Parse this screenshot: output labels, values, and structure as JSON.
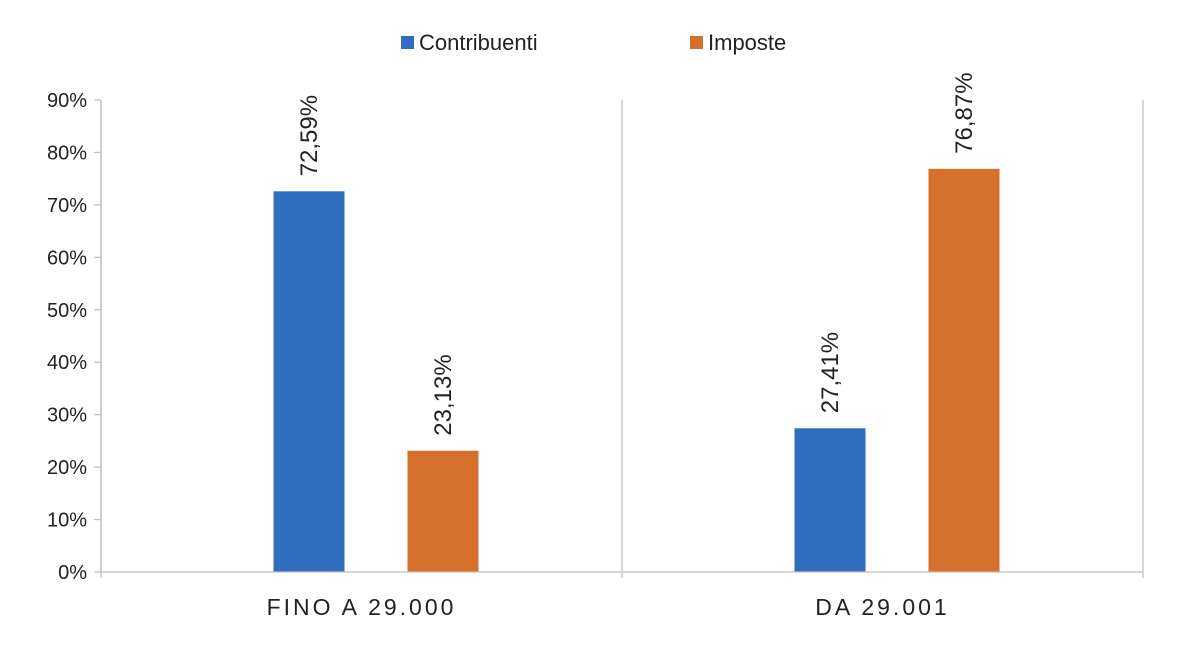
{
  "chart_data": {
    "type": "bar",
    "title": "",
    "xlabel": "",
    "ylabel": "",
    "categories": [
      "FINO A 29.000",
      "DA 29.001"
    ],
    "series": [
      {
        "name": "Contribuenti",
        "color": "#2F6EBF",
        "values": [
          72.59,
          27.41
        ],
        "labels": [
          "72,59%",
          "27,41%"
        ]
      },
      {
        "name": "Imposte",
        "color": "#D5702C",
        "values": [
          23.13,
          76.87
        ],
        "labels": [
          "23,13%",
          "76,87%"
        ]
      }
    ],
    "ylim": [
      0,
      90
    ],
    "yticks": [
      0,
      10,
      20,
      30,
      40,
      50,
      60,
      70,
      80,
      90
    ],
    "ytick_labels": [
      "0%",
      "10%",
      "20%",
      "30%",
      "40%",
      "50%",
      "60%",
      "70%",
      "80%",
      "90%"
    ],
    "legend_position": "top-center",
    "grid": false
  }
}
